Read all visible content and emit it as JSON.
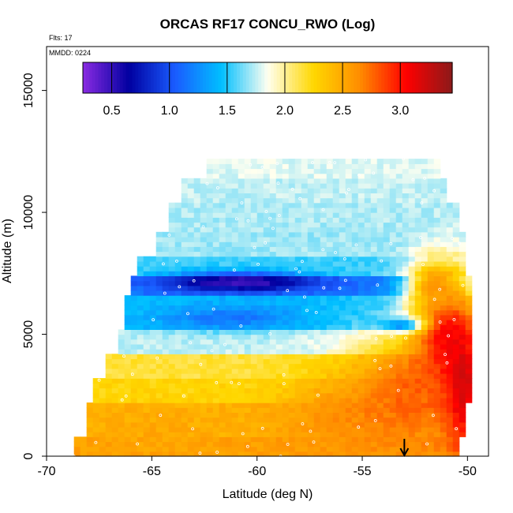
{
  "chart_data": {
    "type": "heatmap",
    "title": "ORCAS RF17 CONCU_RWO (Log)",
    "flights_label": "Flts: 17",
    "date_label": "MMDD: 0224",
    "xlabel": "Latitude (deg N)",
    "ylabel": "Altitude (m)",
    "xlim": [
      -70,
      -49
    ],
    "ylim": [
      0,
      16800
    ],
    "x_ticks": [
      "-70",
      "-65",
      "-60",
      "-55",
      "-50"
    ],
    "y_ticks": [
      "0",
      "5000",
      "10000",
      "15000"
    ],
    "colorbar": {
      "range": [
        0.25,
        3.45
      ],
      "ticks": [
        "0.5",
        "1.0",
        "1.5",
        "2.0",
        "2.5",
        "3.0"
      ],
      "colors": [
        "#8a2be2",
        "#0000a0",
        "#1a5cff",
        "#00bfff",
        "#fffff0",
        "#ffd700",
        "#ff8c00",
        "#ff0000",
        "#8b1a1a"
      ]
    },
    "field_bands": [
      {
        "alt": [
          0,
          900
        ],
        "lat": [
          -68.7,
          -50.5
        ],
        "value": 2.55
      },
      {
        "alt": [
          900,
          2200
        ],
        "lat": [
          -68.2,
          -50.2
        ],
        "value": 2.45
      },
      {
        "alt": [
          2200,
          3200
        ],
        "lat": [
          -67.8,
          -49.9
        ],
        "value": 2.25
      },
      {
        "alt": [
          3200,
          4200
        ],
        "lat": [
          -67.3,
          -49.8
        ],
        "value": 2.15
      },
      {
        "alt": [
          4200,
          5300
        ],
        "lat": [
          -66.7,
          -49.8
        ],
        "value": 1.75
      },
      {
        "alt": [
          5300,
          6600
        ],
        "lat": [
          -66.2,
          -49.8
        ],
        "value": 1.45
      },
      {
        "alt": [
          6600,
          7400
        ],
        "lat": [
          -65.9,
          -49.8
        ],
        "value": 1.15
      },
      {
        "alt": [
          7400,
          8200
        ],
        "lat": [
          -65.6,
          -50.0
        ],
        "value": 1.55
      },
      {
        "alt": [
          8200,
          9300
        ],
        "lat": [
          -64.8,
          -50.2
        ],
        "value": 1.7
      },
      {
        "alt": [
          9300,
          10500
        ],
        "lat": [
          -64.2,
          -50.4
        ],
        "value": 1.72
      },
      {
        "alt": [
          10500,
          11500
        ],
        "lat": [
          -63.6,
          -51.0
        ],
        "value": 1.75
      },
      {
        "alt": [
          11500,
          12200
        ],
        "lat": [
          -62.4,
          -51.3
        ],
        "value": 1.8
      }
    ],
    "features": [
      {
        "lat": -60.8,
        "alt": 7150,
        "rlat": 3.5,
        "ralt": 380,
        "value": 0.45
      },
      {
        "lat": -61.3,
        "alt": 5700,
        "rlat": 3.2,
        "ralt": 500,
        "value": 1.15
      },
      {
        "lat": -56.0,
        "alt": 1500,
        "rlat": 2.8,
        "ralt": 1700,
        "value": 2.6
      },
      {
        "lat": -53.0,
        "alt": 2500,
        "rlat": 2.6,
        "ralt": 2300,
        "value": 2.75
      },
      {
        "lat": -51.0,
        "alt": 5000,
        "rlat": 1.6,
        "ralt": 2400,
        "value": 3.05
      },
      {
        "lat": -50.2,
        "alt": 3000,
        "rlat": 0.9,
        "ralt": 2800,
        "value": 3.2
      },
      {
        "lat": -51.5,
        "alt": 7000,
        "rlat": 1.3,
        "ralt": 1000,
        "value": 2.6
      },
      {
        "lat": -53.2,
        "alt": 5400,
        "rlat": 1.0,
        "ralt": 280,
        "value": 1.25
      },
      {
        "lat": -64.5,
        "alt": 1000,
        "rlat": 2.4,
        "ralt": 900,
        "value": 2.5
      }
    ],
    "marker_latitude": -53.0
  }
}
